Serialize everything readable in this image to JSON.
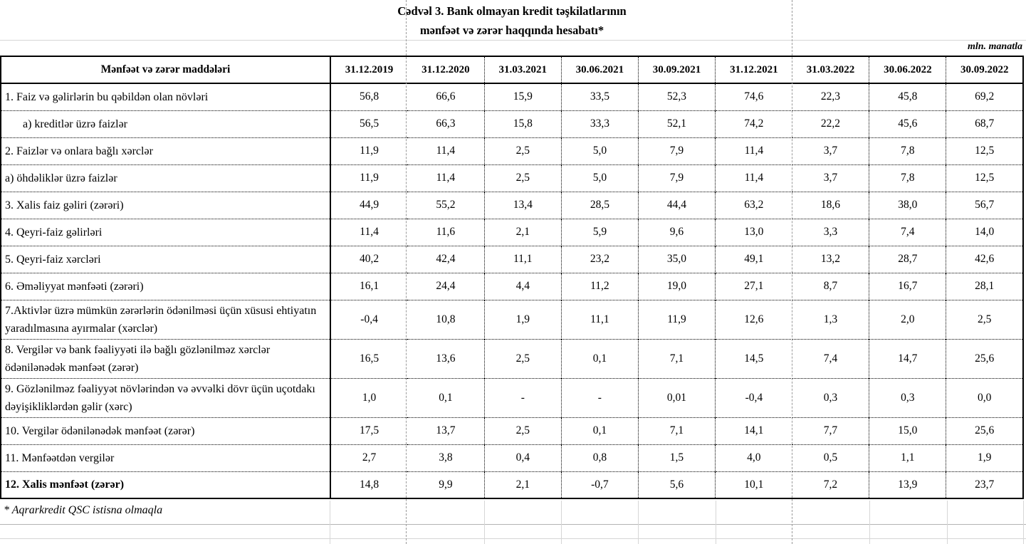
{
  "page": {
    "title_line1": "Cədvəl 3. Bank olmayan kredit təşkilatlarının",
    "title_line2": "mənfəət və zərər haqqında hesabatı*",
    "unit_label": "mln. manatla",
    "footnote": "* Aqrarkredit QSC istisna olmaqla"
  },
  "colors": {
    "border": "#000000",
    "page_break_dash": "#9a9a9a",
    "gridline": "#d6d6d6"
  },
  "table": {
    "header_label": "Mənfəət və zərər maddələri",
    "columns": [
      "31.12.2019",
      "31.12.2020",
      "31.03.2021",
      "30.06.2021",
      "30.09.2021",
      "31.12.2021",
      "31.03.2022",
      "30.06.2022",
      "30.09.2022"
    ],
    "rows": [
      {
        "label": "1. Faiz və gəlirlərin bu qəbildən olan növləri",
        "indent": false,
        "bold": false,
        "tall": false,
        "values": [
          "56,8",
          "66,6",
          "15,9",
          "33,5",
          "52,3",
          "74,6",
          "22,3",
          "45,8",
          "69,2"
        ]
      },
      {
        "label": "a) kreditlər üzrə faizlər",
        "indent": true,
        "bold": false,
        "tall": false,
        "values": [
          "56,5",
          "66,3",
          "15,8",
          "33,3",
          "52,1",
          "74,2",
          "22,2",
          "45,6",
          "68,7"
        ]
      },
      {
        "label": "2. Faizlər və onlara bağlı xərclər",
        "indent": false,
        "bold": false,
        "tall": false,
        "values": [
          "11,9",
          "11,4",
          "2,5",
          "5,0",
          "7,9",
          "11,4",
          "3,7",
          "7,8",
          "12,5"
        ]
      },
      {
        "label": "a) öhdəliklər üzrə faizlər",
        "indent": false,
        "bold": false,
        "tall": false,
        "values": [
          "11,9",
          "11,4",
          "2,5",
          "5,0",
          "7,9",
          "11,4",
          "3,7",
          "7,8",
          "12,5"
        ]
      },
      {
        "label": "3. Xalis faiz gəliri (zərəri)",
        "indent": false,
        "bold": false,
        "tall": false,
        "values": [
          "44,9",
          "55,2",
          "13,4",
          "28,5",
          "44,4",
          "63,2",
          "18,6",
          "38,0",
          "56,7"
        ]
      },
      {
        "label": "4. Qeyri-faiz gəlirləri",
        "indent": false,
        "bold": false,
        "tall": false,
        "values": [
          "11,4",
          "11,6",
          "2,1",
          "5,9",
          "9,6",
          "13,0",
          "3,3",
          "7,4",
          "14,0"
        ]
      },
      {
        "label": "5. Qeyri-faiz xərcləri",
        "indent": false,
        "bold": false,
        "tall": false,
        "values": [
          "40,2",
          "42,4",
          "11,1",
          "23,2",
          "35,0",
          "49,1",
          "13,2",
          "28,7",
          "42,6"
        ]
      },
      {
        "label": "6. Əməliyyat mənfəəti (zərəri)",
        "indent": false,
        "bold": false,
        "tall": false,
        "values": [
          "16,1",
          "24,4",
          "4,4",
          "11,2",
          "19,0",
          "27,1",
          "8,7",
          "16,7",
          "28,1"
        ]
      },
      {
        "label": "7.Aktivlər üzrə mümkün zərərlərin ödənilməsi üçün xüsusi ehtiyatın yaradılmasına ayırmalar (xərclər)",
        "indent": false,
        "bold": false,
        "tall": true,
        "values": [
          "-0,4",
          "10,8",
          "1,9",
          "11,1",
          "11,9",
          "12,6",
          "1,3",
          "2,0",
          "2,5"
        ]
      },
      {
        "label": "8. Vergilər və bank fəaliyyəti ilə bağlı gözlənilməz xərclər ödənilənədək mənfəət (zərər)",
        "indent": false,
        "bold": false,
        "tall": true,
        "values": [
          "16,5",
          "13,6",
          "2,5",
          "0,1",
          "7,1",
          "14,5",
          "7,4",
          "14,7",
          "25,6"
        ]
      },
      {
        "label": "9. Gözlənilməz fəaliyyət növlərindən və əvvəlki dövr üçün uçotdakı dəyişikliklərdən gəlir (xərc)",
        "indent": false,
        "bold": false,
        "tall": true,
        "values": [
          "1,0",
          "0,1",
          "-",
          "-",
          "0,01",
          "-0,4",
          "0,3",
          "0,3",
          "0,0"
        ]
      },
      {
        "label": "10. Vergilər ödənilənədək mənfəət (zərər)",
        "indent": false,
        "bold": false,
        "tall": false,
        "values": [
          "17,5",
          "13,7",
          "2,5",
          "0,1",
          "7,1",
          "14,1",
          "7,7",
          "15,0",
          "25,6"
        ]
      },
      {
        "label": "11. Mənfəətdən vergilər",
        "indent": false,
        "bold": false,
        "tall": false,
        "values": [
          "2,7",
          "3,8",
          "0,4",
          "0,8",
          "1,5",
          "4,0",
          "0,5",
          "1,1",
          "1,9"
        ]
      },
      {
        "label": "12. Xalis mənfəət (zərər)",
        "indent": false,
        "bold": true,
        "tall": false,
        "values": [
          "14,8",
          "9,9",
          "2,1",
          "-0,7",
          "5,6",
          "10,1",
          "7,2",
          "13,9",
          "23,7"
        ]
      }
    ]
  }
}
